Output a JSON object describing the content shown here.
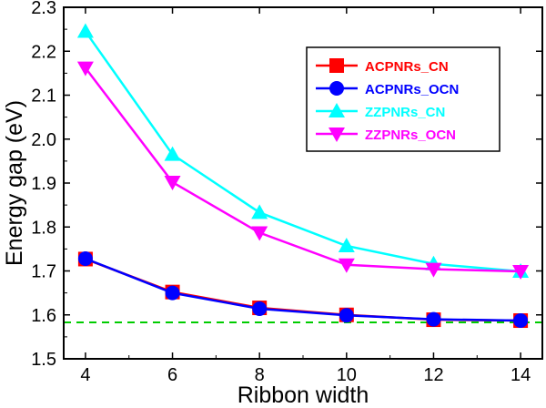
{
  "chart_data": {
    "type": "line",
    "xlabel": "Ribbon width",
    "ylabel": "Energy gap (eV)",
    "xlim": [
      3.5,
      14.5
    ],
    "ylim": [
      1.5,
      2.3
    ],
    "xticks": [
      4,
      6,
      8,
      10,
      12,
      14
    ],
    "yticks": [
      1.5,
      1.6,
      1.7,
      1.8,
      1.9,
      2.0,
      2.1,
      2.2,
      2.3
    ],
    "xtick_labels": [
      "4",
      "6",
      "8",
      "10",
      "12",
      "14"
    ],
    "ytick_labels": [
      "1.5",
      "1.6",
      "1.7",
      "1.8",
      "1.9",
      "2.0",
      "2.1",
      "2.2",
      "2.3"
    ],
    "x": [
      4,
      6,
      8,
      10,
      12,
      14
    ],
    "series": [
      {
        "name": "ACPNRs_CN",
        "color": "#ff0000",
        "marker": "square",
        "values": [
          1.727,
          1.652,
          1.616,
          1.6,
          1.589,
          1.587
        ]
      },
      {
        "name": "ACPNRs_OCN",
        "color": "#0000ff",
        "marker": "circle",
        "values": [
          1.728,
          1.65,
          1.614,
          1.599,
          1.59,
          1.587
        ]
      },
      {
        "name": "ZZPNRs_CN",
        "color": "#00ffff",
        "marker": "triangle-up",
        "values": [
          2.245,
          1.965,
          1.833,
          1.757,
          1.716,
          1.699
        ]
      },
      {
        "name": "ZZPNRs_OCN",
        "color": "#ff00ff",
        "marker": "triangle-down",
        "values": [
          2.162,
          1.902,
          1.787,
          1.714,
          1.704,
          1.699
        ]
      }
    ],
    "reference_line": {
      "y": 1.583,
      "color": "#00cc00",
      "style": "dashed"
    },
    "legend_position": "top-right",
    "grid": false
  }
}
